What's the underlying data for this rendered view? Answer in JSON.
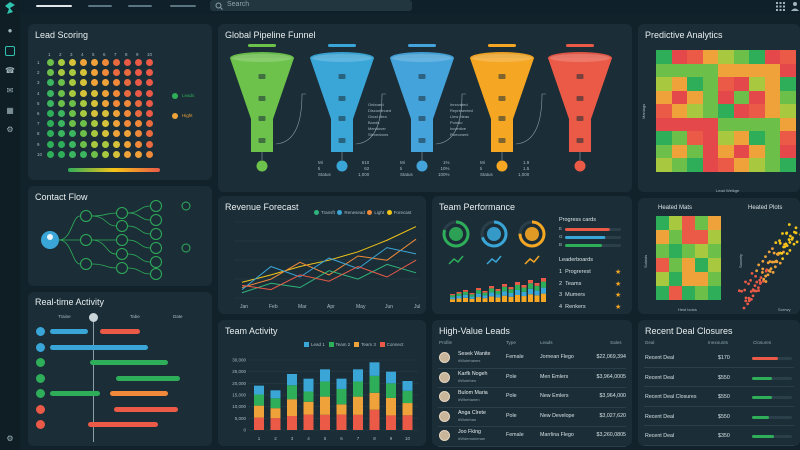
{
  "topbar": {
    "search_placeholder": "Search"
  },
  "sidebar": {
    "icons": [
      "logo-icon",
      "user-icon",
      "inbox-icon",
      "phone-icon",
      "mail-icon",
      "calendar-icon",
      "gear-icon",
      "settings-icon"
    ]
  },
  "lead_scoring": {
    "title": "Lead Scoring",
    "row_labels": [
      "1",
      "2",
      "3",
      "4",
      "5",
      "6",
      "7",
      "8",
      "9",
      "10"
    ],
    "col_labels": [
      "1",
      "2",
      "3",
      "4",
      "5",
      "6",
      "7",
      "8",
      "9",
      "10"
    ],
    "legend": [
      {
        "label": "Leads",
        "color": "#2fae5a"
      },
      {
        "label": "Hight",
        "color": "#f0a23a"
      }
    ]
  },
  "pipeline": {
    "title": "Global Pipeline Funnel",
    "stage_colors": [
      "#6dc24b",
      "#3aa6d8",
      "#44a3da",
      "#f5a623",
      "#ea5a47"
    ],
    "annotations_a": [
      "Onboard",
      "Discontinued",
      "Good Idea",
      "Bonds",
      "Mendover",
      "Stevedoors"
    ],
    "annotations_b": [
      "Innovated",
      "Represented",
      "Liew Ideas",
      "Poindo",
      "Incentive",
      "Romonent"
    ],
    "stats": [
      {
        "lines": [
          "Mi",
          "ti",
          "Status"
        ],
        "values": [
          "610",
          "62",
          "1,000"
        ]
      },
      {
        "lines": [
          "Mi",
          "ti",
          "Status"
        ],
        "values": [
          "1%",
          "10%",
          "100%"
        ]
      },
      {
        "lines": [
          "Mi",
          "ti",
          "Status"
        ],
        "values": [
          "1.9",
          "1.5",
          "1,000"
        ]
      }
    ]
  },
  "predictive": {
    "title": "Predictive Analytics",
    "xlabel": "Lead Welkge",
    "ylabel": "Maniags"
  },
  "contact_flow": {
    "title": "Contact Flow"
  },
  "revenue": {
    "title": "Revenue Forecast",
    "legend": [
      {
        "label": "Transft",
        "color": "#2fb57a"
      },
      {
        "label": "Renesead",
        "color": "#3aa6d8"
      },
      {
        "label": "Light",
        "color": "#f08a3a"
      },
      {
        "label": "Forecast",
        "color": "#f5c518"
      }
    ]
  },
  "team_perf": {
    "title": "Team Performance",
    "progress_title": "Progress cards",
    "progress": [
      {
        "label": "E",
        "value": 0.8,
        "color": "#ea5a47"
      },
      {
        "label": "G",
        "value": 0.72,
        "color": "#3aa6d8"
      },
      {
        "label": "B",
        "value": 0.66,
        "color": "#2fae5a"
      }
    ],
    "leaderboard_title": "Leaderboards",
    "leaderboard": [
      {
        "rank": "1",
        "name": "Progrerest"
      },
      {
        "rank": "2",
        "name": "Teams"
      },
      {
        "rank": "3",
        "name": "Mumers"
      },
      {
        "rank": "4",
        "name": "Renkers"
      }
    ]
  },
  "heatmaps": {
    "title_a": "Heated Mats",
    "title_b": "Heated Plots",
    "xlabel_a": "Hest bolos",
    "ylabel_a": "Sulasts",
    "xlabel_b": "Sorrwy",
    "ylabel_b": "Sasvely"
  },
  "realtime": {
    "title": "Real-time Activity",
    "cols": [
      "Traine",
      "Tabe",
      "Date"
    ]
  },
  "team_activity": {
    "title": "Team Activity",
    "legend": [
      {
        "label": "Lead 1",
        "color": "#3aa6d8"
      },
      {
        "label": "Team 2",
        "color": "#2fae5a"
      },
      {
        "label": "Team 3",
        "color": "#f0a23a"
      },
      {
        "label": "Connect",
        "color": "#ea5a47"
      }
    ],
    "yticks": [
      "30,000",
      "25,000",
      "20,000",
      "15,000",
      "10,000",
      "5,000",
      "0"
    ],
    "xticks": [
      "1",
      "2",
      "3",
      "4",
      "5",
      "6",
      "7",
      "8",
      "9",
      "10"
    ]
  },
  "leads": {
    "title": "High-Value Leads",
    "headers": [
      "Profile",
      "Type",
      "Leads",
      "Sales"
    ],
    "rows": [
      {
        "name": "Sesek Wanite",
        "sub": "#Wotehanes",
        "type": "Female",
        "lead": "Jornean Flego",
        "sales": "$22,069,394"
      },
      {
        "name": "Karfk Nogeh",
        "sub": "#Wotehen",
        "type": "Pole",
        "lead": "Men Emlers",
        "sales": "$3,964,0005"
      },
      {
        "name": "Bulom Maria",
        "sub": "#Wbehanen",
        "type": "Pole",
        "lead": "New Emlers",
        "sales": "$3,964,000"
      },
      {
        "name": "Anga Clrete",
        "sub": "#Wotehan",
        "type": "Pole",
        "lead": "New Develope",
        "sales": "$3,027,620"
      },
      {
        "name": "Joo Fking",
        "sub": "#Wdemonenan",
        "type": "Female",
        "lead": "Marrlina Flego",
        "sales": "$3,260,0805"
      }
    ]
  },
  "closures": {
    "title": "Recent Deal Closures",
    "headers": [
      "Deal",
      "Inexounts",
      "Closures"
    ],
    "rows": [
      {
        "deal": "Recent Deal",
        "amount": "$170",
        "fill": 0.65,
        "color": "#ea5a47"
      },
      {
        "deal": "Recent Deal",
        "amount": "$550",
        "fill": 0.5,
        "color": "#2fae5a"
      },
      {
        "deal": "Recent Deal Closures",
        "amount": "$550",
        "fill": 0.5,
        "color": "#2fae5a"
      },
      {
        "deal": "Recent Deal",
        "amount": "$550",
        "fill": 0.42,
        "color": "#2fae5a"
      },
      {
        "deal": "Recent Deal",
        "amount": "$350",
        "fill": 0.55,
        "color": "#2fae5a"
      }
    ]
  }
}
